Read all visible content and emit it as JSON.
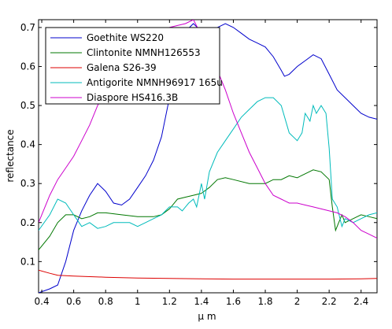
{
  "chart_data": {
    "type": "line",
    "title": "",
    "xlabel": "μ m",
    "ylabel": "reflectance",
    "xlim": [
      0.38,
      2.5
    ],
    "ylim": [
      0.02,
      0.72
    ],
    "grid": false,
    "legend_position": "top-left",
    "xticks": [
      0.4,
      0.6,
      0.8,
      1,
      1.2,
      1.4,
      1.6,
      1.8,
      2,
      2.2,
      2.4
    ],
    "xtick_labels": [
      "0.4",
      "0.6",
      "0.8",
      "1",
      "1.2",
      "1.4",
      "1.6",
      "1.8",
      "2",
      "2.2",
      "2.4"
    ],
    "yticks": [
      0.1,
      0.2,
      0.3,
      0.4,
      0.5,
      0.6,
      0.7
    ],
    "ytick_labels": [
      "0.1",
      "0.2",
      "0.3",
      "0.4",
      "0.5",
      "0.6",
      "0.7"
    ],
    "series": [
      {
        "name": "Goethite WS220",
        "color": "#0000cc",
        "x": [
          0.38,
          0.45,
          0.5,
          0.55,
          0.6,
          0.65,
          0.7,
          0.75,
          0.8,
          0.85,
          0.9,
          0.95,
          1.0,
          1.05,
          1.1,
          1.15,
          1.2,
          1.25,
          1.3,
          1.35,
          1.4,
          1.45,
          1.5,
          1.55,
          1.6,
          1.65,
          1.7,
          1.75,
          1.8,
          1.85,
          1.9,
          1.92,
          1.95,
          2.0,
          2.05,
          2.1,
          2.15,
          2.2,
          2.25,
          2.3,
          2.35,
          2.4,
          2.45,
          2.5
        ],
        "y": [
          0.02,
          0.03,
          0.04,
          0.1,
          0.18,
          0.23,
          0.27,
          0.3,
          0.28,
          0.25,
          0.245,
          0.26,
          0.29,
          0.32,
          0.36,
          0.42,
          0.52,
          0.62,
          0.69,
          0.71,
          0.69,
          0.69,
          0.7,
          0.71,
          0.7,
          0.685,
          0.67,
          0.66,
          0.65,
          0.625,
          0.59,
          0.575,
          0.58,
          0.6,
          0.615,
          0.63,
          0.62,
          0.58,
          0.54,
          0.52,
          0.5,
          0.48,
          0.47,
          0.465
        ]
      },
      {
        "name": "Clintonite NMNH126553",
        "color": "#007700",
        "x": [
          0.38,
          0.45,
          0.5,
          0.55,
          0.6,
          0.65,
          0.7,
          0.75,
          0.8,
          0.9,
          1.0,
          1.1,
          1.15,
          1.2,
          1.25,
          1.3,
          1.35,
          1.4,
          1.45,
          1.5,
          1.55,
          1.6,
          1.7,
          1.8,
          1.85,
          1.9,
          1.95,
          2.0,
          2.05,
          2.1,
          2.15,
          2.2,
          2.22,
          2.24,
          2.26,
          2.28,
          2.3,
          2.35,
          2.4,
          2.45,
          2.5
        ],
        "y": [
          0.13,
          0.165,
          0.2,
          0.22,
          0.22,
          0.21,
          0.215,
          0.225,
          0.225,
          0.22,
          0.215,
          0.215,
          0.22,
          0.235,
          0.26,
          0.265,
          0.27,
          0.275,
          0.29,
          0.31,
          0.315,
          0.31,
          0.3,
          0.3,
          0.31,
          0.31,
          0.32,
          0.315,
          0.325,
          0.335,
          0.33,
          0.31,
          0.24,
          0.18,
          0.2,
          0.22,
          0.2,
          0.21,
          0.22,
          0.215,
          0.21
        ]
      },
      {
        "name": "Galena S26-39",
        "color": "#dd0000",
        "x": [
          0.38,
          0.45,
          0.5,
          0.6,
          0.8,
          1.0,
          1.2,
          1.4,
          1.6,
          1.8,
          2.0,
          2.2,
          2.4,
          2.5
        ],
        "y": [
          0.078,
          0.07,
          0.065,
          0.063,
          0.06,
          0.058,
          0.057,
          0.056,
          0.055,
          0.055,
          0.055,
          0.055,
          0.056,
          0.057
        ]
      },
      {
        "name": "Antigorite NMNH96917 165u",
        "color": "#00bbbb",
        "x": [
          0.38,
          0.45,
          0.5,
          0.55,
          0.6,
          0.65,
          0.7,
          0.75,
          0.8,
          0.85,
          0.9,
          0.95,
          1.0,
          1.05,
          1.1,
          1.15,
          1.2,
          1.25,
          1.28,
          1.3,
          1.32,
          1.35,
          1.37,
          1.4,
          1.42,
          1.45,
          1.5,
          1.55,
          1.6,
          1.65,
          1.7,
          1.75,
          1.8,
          1.85,
          1.9,
          1.95,
          2.0,
          2.03,
          2.05,
          2.08,
          2.1,
          2.12,
          2.15,
          2.18,
          2.2,
          2.22,
          2.25,
          2.28,
          2.3,
          2.35,
          2.4,
          2.45,
          2.5
        ],
        "y": [
          0.18,
          0.22,
          0.26,
          0.25,
          0.22,
          0.19,
          0.2,
          0.185,
          0.19,
          0.2,
          0.2,
          0.2,
          0.19,
          0.2,
          0.21,
          0.22,
          0.24,
          0.24,
          0.23,
          0.24,
          0.25,
          0.26,
          0.24,
          0.3,
          0.26,
          0.33,
          0.38,
          0.41,
          0.44,
          0.47,
          0.49,
          0.51,
          0.52,
          0.52,
          0.5,
          0.43,
          0.41,
          0.43,
          0.48,
          0.46,
          0.5,
          0.48,
          0.5,
          0.48,
          0.39,
          0.26,
          0.24,
          0.19,
          0.21,
          0.2,
          0.21,
          0.22,
          0.225
        ]
      },
      {
        "name": "Diaspore HS416.3B",
        "color": "#cc00cc",
        "x": [
          0.38,
          0.45,
          0.5,
          0.55,
          0.6,
          0.65,
          0.7,
          0.75,
          0.8,
          0.85,
          0.9,
          0.95,
          1.0,
          1.05,
          1.1,
          1.15,
          1.2,
          1.25,
          1.3,
          1.35,
          1.4,
          1.45,
          1.5,
          1.55,
          1.6,
          1.65,
          1.7,
          1.75,
          1.8,
          1.85,
          1.9,
          1.95,
          2.0,
          2.05,
          2.1,
          2.15,
          2.2,
          2.25,
          2.3,
          2.35,
          2.4,
          2.45,
          2.5
        ],
        "y": [
          0.2,
          0.27,
          0.31,
          0.34,
          0.37,
          0.41,
          0.45,
          0.5,
          0.54,
          0.58,
          0.6,
          0.62,
          0.64,
          0.66,
          0.68,
          0.69,
          0.7,
          0.705,
          0.71,
          0.72,
          0.68,
          0.62,
          0.59,
          0.54,
          0.48,
          0.43,
          0.38,
          0.34,
          0.3,
          0.27,
          0.26,
          0.25,
          0.25,
          0.245,
          0.24,
          0.235,
          0.23,
          0.225,
          0.215,
          0.2,
          0.18,
          0.17,
          0.16
        ]
      }
    ]
  }
}
